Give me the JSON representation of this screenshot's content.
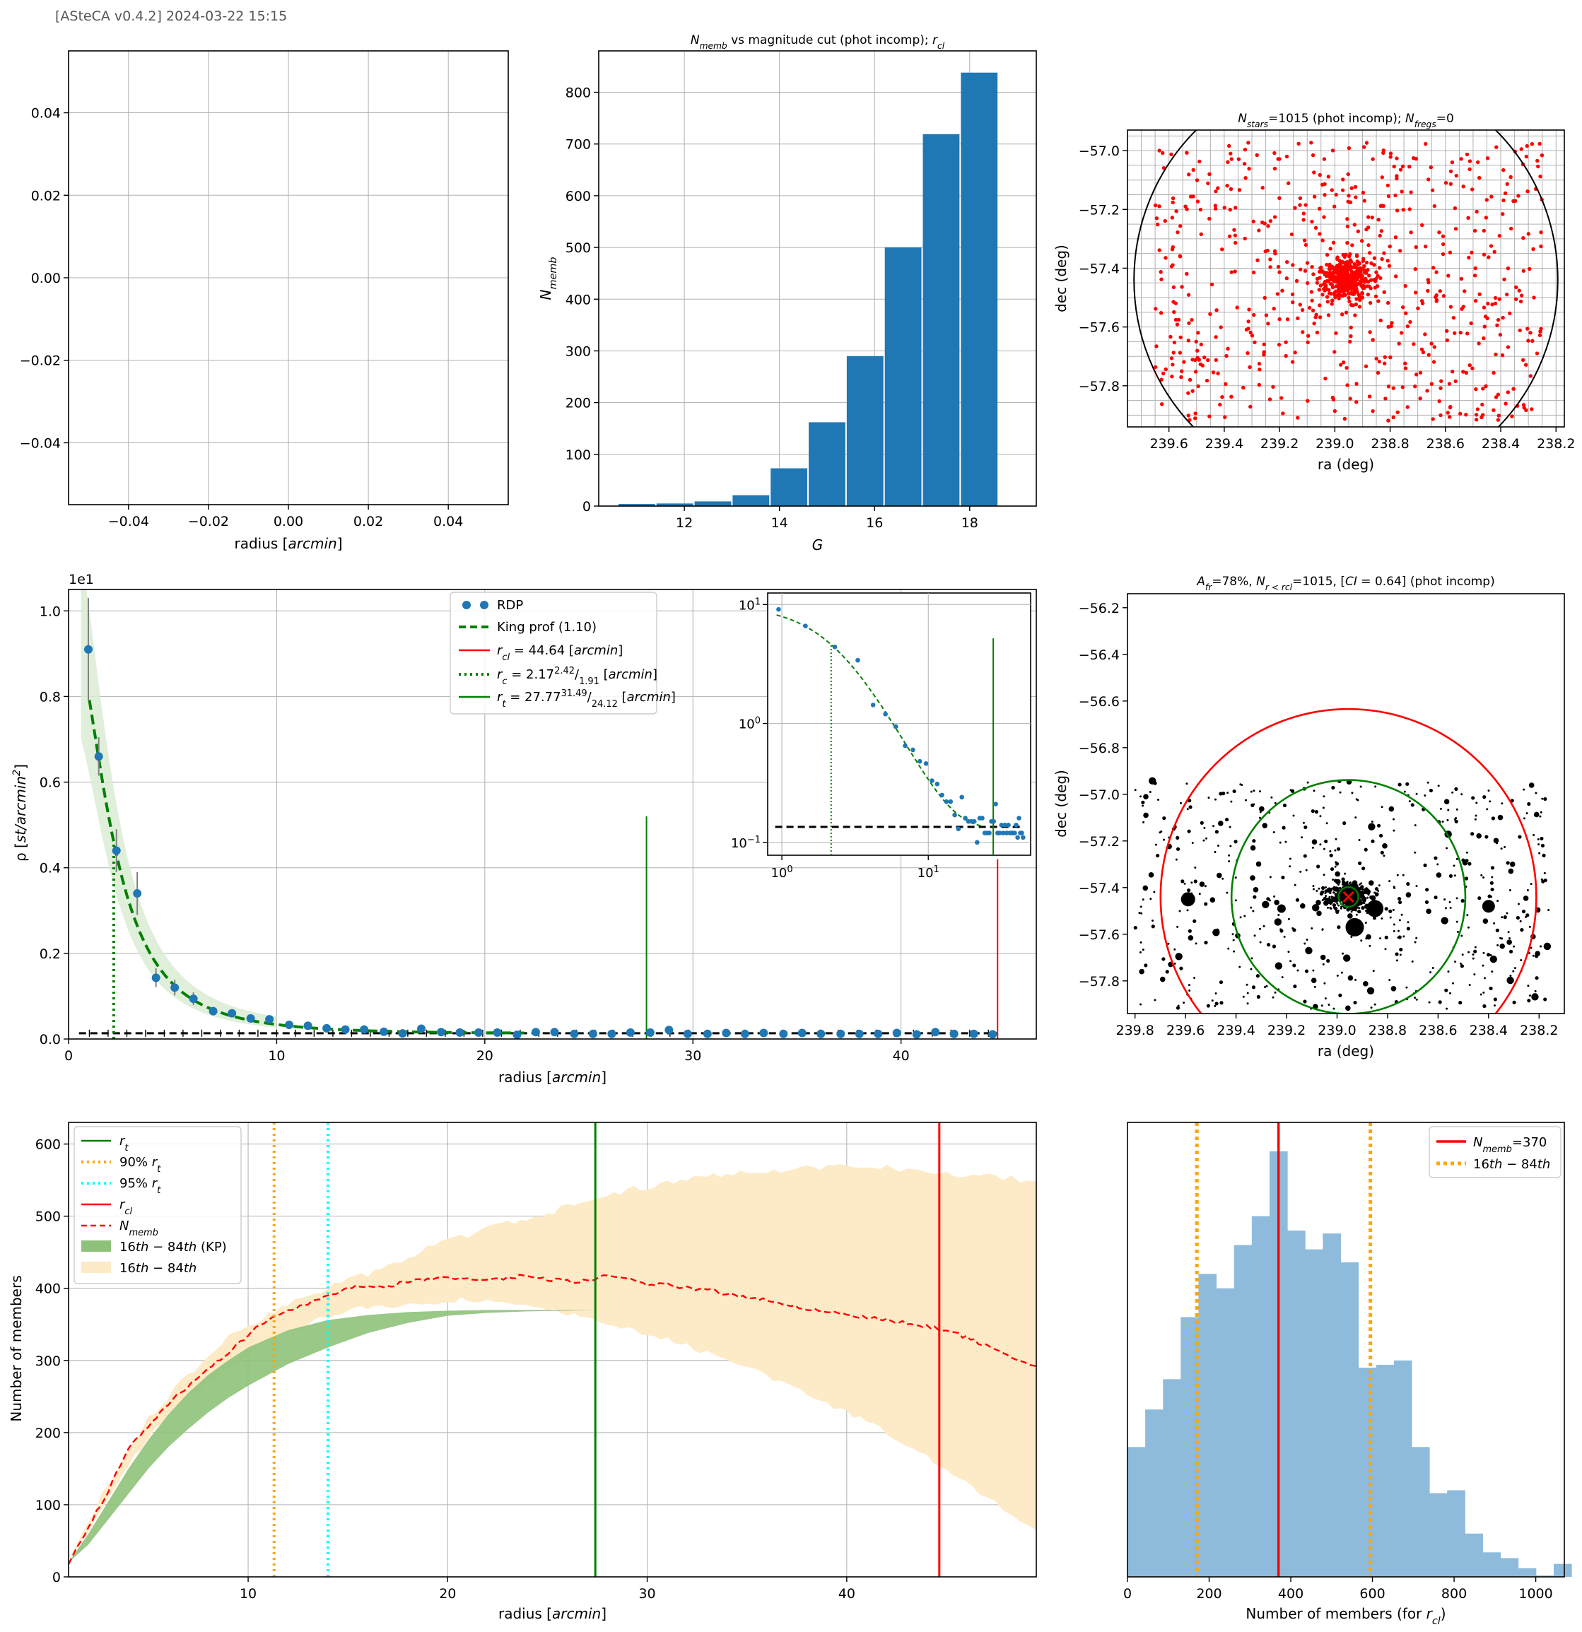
{
  "header": {
    "text": "[ASteCA v0.4.2] 2024-03-22 15:15"
  },
  "colors": {
    "blue": "#1f77b4",
    "green": "#008000",
    "red": "#ff0000",
    "orange": "#ffa500",
    "cyan": "#00ffff",
    "black": "#000000",
    "wheat": "#fdeac6",
    "lightgreen": "#8ec27a"
  },
  "chart_data": [
    {
      "id": "empty",
      "type": "line",
      "title": "",
      "xlabel": "radius [arcmin]",
      "ylabel": "",
      "xlim": [
        -0.055,
        0.055
      ],
      "ylim": [
        -0.055,
        0.055
      ],
      "xticks": [
        -0.04,
        -0.02,
        0.0,
        0.02,
        0.04
      ],
      "xtick_labels": [
        "−0.04",
        "−0.02",
        "0.00",
        "0.02",
        "0.04"
      ],
      "yticks": [
        -0.04,
        -0.02,
        0.0,
        0.02,
        0.04
      ],
      "ytick_labels": [
        "−0.04",
        "−0.02",
        "0.00",
        "0.02",
        "0.04"
      ],
      "series": []
    },
    {
      "id": "nmemb_hist",
      "type": "bar",
      "title": "N_memb vs magnitude cut (phot incomp); r_cl",
      "title_main": "N",
      "title_sub": "memb",
      "title_rest": " vs magnitude cut (phot incomp); ",
      "title_r": "r",
      "title_rsub": "cl",
      "xlabel": "G",
      "ylabel_main": "N",
      "ylabel_sub": "memb",
      "xlim": [
        10.2,
        19.4
      ],
      "ylim": [
        0,
        880
      ],
      "xticks": [
        12,
        14,
        16,
        18
      ],
      "xtick_labels": [
        "12",
        "14",
        "16",
        "18"
      ],
      "yticks": [
        0,
        100,
        200,
        300,
        400,
        500,
        600,
        700,
        800
      ],
      "ytick_labels": [
        "0",
        "100",
        "200",
        "300",
        "400",
        "500",
        "600",
        "700",
        "800"
      ],
      "bin_edges": [
        10.6,
        11.4,
        12.2,
        13.0,
        13.8,
        14.6,
        15.4,
        16.2,
        17.0,
        17.8,
        18.6
      ],
      "values": [
        4,
        5,
        9,
        21,
        73,
        162,
        290,
        500,
        719,
        838
      ]
    },
    {
      "id": "field_red",
      "type": "scatter",
      "title": "N_stars=1015 (phot incomp); N_fregs=0",
      "title_a": "N",
      "title_a_sub": "stars",
      "title_b": "=1015 (phot incomp); ",
      "title_c": "N",
      "title_c_sub": "fregs",
      "title_d": "=0",
      "xlabel": "ra (deg)",
      "ylabel": "dec (deg)",
      "xlim": [
        239.75,
        238.17
      ],
      "ylim": [
        -57.94,
        -56.93
      ],
      "xticks": [
        239.6,
        239.4,
        239.2,
        239.0,
        238.8,
        238.6,
        238.4,
        238.2
      ],
      "xtick_labels": [
        "239.6",
        "239.4",
        "239.2",
        "239.0",
        "238.8",
        "238.6",
        "238.4",
        "238.2"
      ],
      "yticks": [
        -57.8,
        -57.6,
        -57.4,
        -57.2,
        -57.0
      ],
      "ytick_labels": [
        "−57.8",
        "−57.6",
        "−57.4",
        "−57.2",
        "−57.0"
      ],
      "center": [
        238.96,
        -57.44
      ],
      "n_stars": 1015,
      "cluster_radius_deg": 0.744
    },
    {
      "id": "rdp",
      "type": "line",
      "title": "",
      "xlabel": "radius [arcmin]",
      "ylabel": "ρ [st/arcmin^2]",
      "offset_label": "1e1",
      "xlim": [
        0,
        46.5
      ],
      "ylim": [
        0,
        1.05
      ],
      "xticks": [
        0,
        10,
        20,
        30,
        40
      ],
      "xtick_labels": [
        "0",
        "10",
        "20",
        "30",
        "40"
      ],
      "yticks": [
        0.0,
        0.2,
        0.4,
        0.6,
        0.8,
        1.0
      ],
      "ytick_labels": [
        "0.0",
        "0.2",
        "0.4",
        "0.6",
        "0.8",
        "1.0"
      ],
      "rdp_points": {
        "x": [
          0.95,
          1.45,
          2.3,
          3.3,
          4.2,
          5.1,
          6.0,
          6.95,
          7.85,
          8.75,
          9.65,
          10.6,
          11.5,
          12.4,
          13.3,
          14.2,
          15.15,
          16.05,
          16.95,
          17.9,
          18.8,
          19.7,
          20.6,
          21.55,
          22.45,
          23.35,
          24.3,
          25.2,
          26.1,
          27.0,
          27.95,
          28.85,
          29.75,
          30.7,
          31.6,
          32.5,
          33.4,
          34.35,
          35.25,
          36.15,
          37.1,
          38.0,
          38.9,
          39.8,
          40.75,
          41.65,
          42.55,
          43.5,
          44.4
        ],
        "y": [
          0.91,
          0.66,
          0.44,
          0.34,
          0.143,
          0.12,
          0.094,
          0.065,
          0.06,
          0.048,
          0.046,
          0.033,
          0.031,
          0.025,
          0.022,
          0.022,
          0.017,
          0.013,
          0.024,
          0.016,
          0.015,
          0.015,
          0.015,
          0.01,
          0.016,
          0.016,
          0.012,
          0.012,
          0.012,
          0.015,
          0.015,
          0.021,
          0.012,
          0.012,
          0.014,
          0.012,
          0.014,
          0.012,
          0.014,
          0.012,
          0.012,
          0.012,
          0.012,
          0.014,
          0.011,
          0.016,
          0.012,
          0.012,
          0.011
        ],
        "err": [
          0.12,
          0.045,
          0.05,
          0.05,
          0.022,
          0.018,
          0.015,
          0.01,
          0.009,
          0.008,
          0.007,
          0.006,
          0.006,
          0.005,
          0.005,
          0.005,
          0.004,
          0.004,
          0.005,
          0.004,
          0.004,
          0.004,
          0.004,
          0.003,
          0.004,
          0.004,
          0.004,
          0.004,
          0.004,
          0.004,
          0.004,
          0.004,
          0.004,
          0.004,
          0.004,
          0.004,
          0.004,
          0.004,
          0.004,
          0.004,
          0.004,
          0.004,
          0.004,
          0.004,
          0.004,
          0.004,
          0.004,
          0.004,
          0.004
        ]
      },
      "king_profile": {
        "rc": 2.17,
        "rt": 27.77,
        "cd": 0.96,
        "fd": 0.0135
      },
      "field_density": 0.0135,
      "r_cl": 44.64,
      "r_c": 2.17,
      "r_t": 27.77,
      "legend": {
        "rdp": "RDP",
        "king": "King prof (1.10)",
        "rcl": "r_cl = 44.64 [arcmin]",
        "rc": "r_c = 2.17 (+2.42/1.91) [arcmin]",
        "rt": "r_t = 27.77 (+31.49/24.12) [arcmin]"
      },
      "rcl_text": "= 44.64 [",
      "rc_text": "= 2.17",
      "rc_sup": "2.42",
      "rc_sub": "1.91",
      "rt_text": "= 27.77",
      "rt_sup": "31.49",
      "rt_sub": "24.12",
      "unit_text": "arcmin",
      "inset": {
        "type": "line",
        "scale": "log-log",
        "xticks_labels": [
          "10",
          "10"
        ],
        "xtick_exps": [
          "0",
          "1"
        ],
        "ytick_labels": [
          "10",
          "10",
          "10"
        ],
        "ytick_exps": [
          "1",
          "0",
          "−1"
        ]
      }
    },
    {
      "id": "field_black",
      "type": "scatter",
      "title": "A_fr=78%, N_r<rcl=1015, [CI=0.64] (phot incomp)",
      "title_a": "A",
      "title_a_sub": "fr",
      "title_b": "=78%, ",
      "title_c": "N",
      "title_c_sub": "r < r",
      "title_c_subsub": "cl",
      "title_d": "=1015, [",
      "title_e": "CI",
      "title_f": " = 0.64] (phot incomp)",
      "xlabel": "ra (deg)",
      "ylabel": "dec (deg)",
      "xlim": [
        239.83,
        238.1
      ],
      "ylim": [
        -57.94,
        -56.14
      ],
      "xticks": [
        239.8,
        239.6,
        239.4,
        239.2,
        239.0,
        238.8,
        238.6,
        238.4,
        238.2
      ],
      "xtick_labels": [
        "239.8",
        "239.6",
        "239.4",
        "239.2",
        "239.0",
        "238.8",
        "238.6",
        "238.4",
        "238.2"
      ],
      "yticks": [
        -57.8,
        -57.6,
        -57.4,
        -57.2,
        -57.0,
        -56.8,
        -56.6,
        -56.4,
        -56.2
      ],
      "ytick_labels": [
        "−57.8",
        "−57.6",
        "−57.4",
        "−57.2",
        "−57.0",
        "−56.8",
        "−56.6",
        "−56.4",
        "−56.2"
      ],
      "center": [
        238.955,
        -57.44
      ],
      "r_cl_deg": 0.744,
      "r_t_deg": 0.463,
      "big_stars": [
        [
          239.59,
          -57.45
        ],
        [
          238.85,
          -57.49
        ],
        [
          238.93,
          -57.57
        ],
        [
          238.4,
          -57.48
        ],
        [
          239.22,
          -57.49
        ],
        [
          238.98,
          -57.43
        ],
        [
          238.95,
          -57.44
        ]
      ]
    },
    {
      "id": "members_vs_radius",
      "type": "line",
      "title": "",
      "xlabel": "radius [arcmin]",
      "ylabel": "Number of members",
      "xlim": [
        1.0,
        49.5
      ],
      "ylim": [
        0,
        630
      ],
      "xticks": [
        10,
        20,
        30,
        40
      ],
      "xtick_labels": [
        "10",
        "20",
        "30",
        "40"
      ],
      "yticks": [
        0,
        100,
        200,
        300,
        400,
        500,
        600
      ],
      "ytick_labels": [
        "0",
        "100",
        "200",
        "300",
        "400",
        "500",
        "600"
      ],
      "r_t": 27.4,
      "r_90": 11.3,
      "r_95": 14.0,
      "r_cl": 44.64,
      "nmemb_curve": {
        "x": [
          1.0,
          2.0,
          3.0,
          4.0,
          5.0,
          6.0,
          7.0,
          8.0,
          9.0,
          10.0,
          11.0,
          12.0,
          13.0,
          14.0,
          15.0,
          16.0,
          17.0,
          18.0,
          19.0,
          20.0,
          21.0,
          22.0,
          23.0,
          24.0,
          25.0,
          26.0,
          27.0,
          28.0,
          29.0,
          30.0,
          31.0,
          32.0,
          33.0,
          34.0,
          35.0,
          36.0,
          37.0,
          38.0,
          39.0,
          40.0,
          41.0,
          42.0,
          43.0,
          44.0,
          45.0,
          46.0,
          47.0,
          48.0,
          49.5
        ],
        "y": [
          20,
          70,
          120,
          180,
          210,
          240,
          265,
          290,
          310,
          335,
          358,
          370,
          378,
          390,
          400,
          405,
          402,
          410,
          412,
          415,
          414,
          412,
          415,
          418,
          412,
          410,
          410,
          418,
          414,
          405,
          405,
          400,
          398,
          392,
          388,
          384,
          378,
          372,
          368,
          364,
          360,
          356,
          352,
          348,
          342,
          332,
          320,
          308,
          292
        ]
      },
      "band_all": {
        "x": [
          1.0,
          3.0,
          5.0,
          7.0,
          9.0,
          11.0,
          13.0,
          15.0,
          17.0,
          19.0,
          21.0,
          23.0,
          25.0,
          27.0,
          29.0,
          31.0,
          33.0,
          35.0,
          37.0,
          39.0,
          41.0,
          43.0,
          45.0,
          47.0,
          49.5
        ],
        "lo": [
          20,
          110,
          195,
          250,
          290,
          325,
          350,
          370,
          375,
          380,
          385,
          380,
          370,
          360,
          345,
          330,
          310,
          290,
          265,
          240,
          215,
          185,
          150,
          110,
          65
        ],
        "hi": [
          20,
          130,
          220,
          280,
          330,
          365,
          390,
          410,
          430,
          455,
          475,
          490,
          505,
          520,
          535,
          548,
          555,
          562,
          565,
          568,
          570,
          565,
          560,
          555,
          548
        ]
      },
      "band_kp": {
        "x": [
          1.0,
          2.0,
          3.0,
          4.0,
          5.0,
          6.0,
          7.0,
          8.0,
          9.0,
          10.0,
          12.0,
          14.0,
          16.0,
          18.0,
          20.0,
          22.0,
          24.0,
          26.0,
          27.4
        ],
        "lo": [
          20,
          45,
          80,
          115,
          150,
          180,
          205,
          228,
          248,
          265,
          295,
          318,
          338,
          352,
          362,
          366,
          368,
          369,
          370
        ],
        "hi": [
          20,
          60,
          105,
          150,
          190,
          225,
          255,
          280,
          300,
          318,
          342,
          356,
          363,
          367,
          369,
          370,
          370,
          370,
          370
        ]
      },
      "legend": {
        "rt": "r_t",
        "r90": "90% r_t",
        "r95": "95% r_t",
        "rcl": "r_cl",
        "nmemb": "N_memb",
        "band_kp": "16th−84th (KP)",
        "band_all": "16th−84th"
      },
      "leg_r": "r",
      "leg_t": "t",
      "leg_cl": "cl",
      "leg_n": "N",
      "leg_memb": "memb",
      "leg_90": "90% ",
      "leg_95": "95% ",
      "leg_16": "16",
      "leg_th1": "th",
      "leg_dash": " − 84",
      "leg_th2": "th",
      "leg_kp": " (KP)"
    },
    {
      "id": "members_hist",
      "type": "bar",
      "title": "",
      "xlabel": "Number of members (for r_cl)",
      "xlabel_a": "Number of members (for ",
      "xlabel_r": "r",
      "xlabel_sub": "cl",
      "xlabel_end": ")",
      "ylabel": "",
      "xlim": [
        0,
        1070
      ],
      "ylim": [
        0,
        31.5
      ],
      "xticks": [
        0,
        200,
        400,
        600,
        800,
        1000
      ],
      "xtick_labels": [
        "0",
        "200",
        "400",
        "600",
        "800",
        "1000"
      ],
      "bin_start": 0,
      "bin_width": 43.5,
      "values": [
        9,
        11.6,
        13.7,
        18,
        21,
        20,
        23,
        25,
        29.5,
        24,
        22.7,
        23.8,
        21.8,
        14.5,
        14.7,
        15,
        9,
        5.8,
        6,
        3,
        1.7,
        1.3,
        0.6,
        0.1,
        0.9
      ],
      "n_memb": 370,
      "p16": 170,
      "p84": 595,
      "legend": {
        "nmemb": "N_memb=370",
        "pct": "16th−84th"
      },
      "leg_n": "N",
      "leg_memb": "memb",
      "leg_val": "=370",
      "leg_16": "16",
      "leg_th1": "th",
      "leg_dash": " − 84",
      "leg_th2": "th"
    }
  ]
}
